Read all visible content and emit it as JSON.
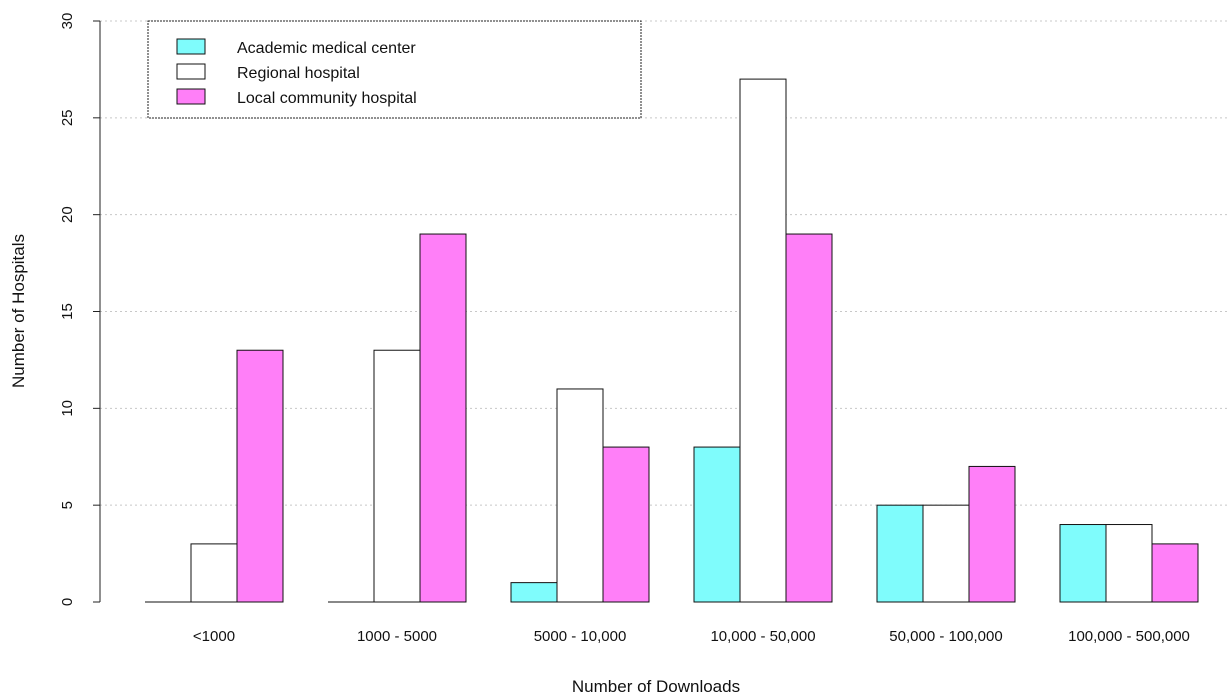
{
  "chart_data": {
    "type": "bar",
    "title": "",
    "xlabel": "Number of Downloads",
    "ylabel": "Number of Hospitals",
    "ylim": [
      0,
      30
    ],
    "yticks": [
      0,
      5,
      10,
      15,
      20,
      25,
      30
    ],
    "grid": "horizontal dotted",
    "legend_position": "top-left",
    "categories": [
      "<1000",
      "1000 - 5000",
      "5000  - 10,000",
      "10,000 - 50,000",
      "50,000 - 100,000",
      "100,000 - 500,000"
    ],
    "series": [
      {
        "name": "Academic medical center",
        "color": "#7ffcfc",
        "values": [
          0,
          0,
          1,
          8,
          5,
          4
        ]
      },
      {
        "name": "Regional hospital",
        "color": "#ffffff",
        "values": [
          3,
          13,
          11,
          27,
          5,
          4
        ]
      },
      {
        "name": "Local community hospital",
        "color": "#ff7ff8",
        "values": [
          13,
          19,
          8,
          19,
          7,
          3
        ]
      }
    ]
  }
}
